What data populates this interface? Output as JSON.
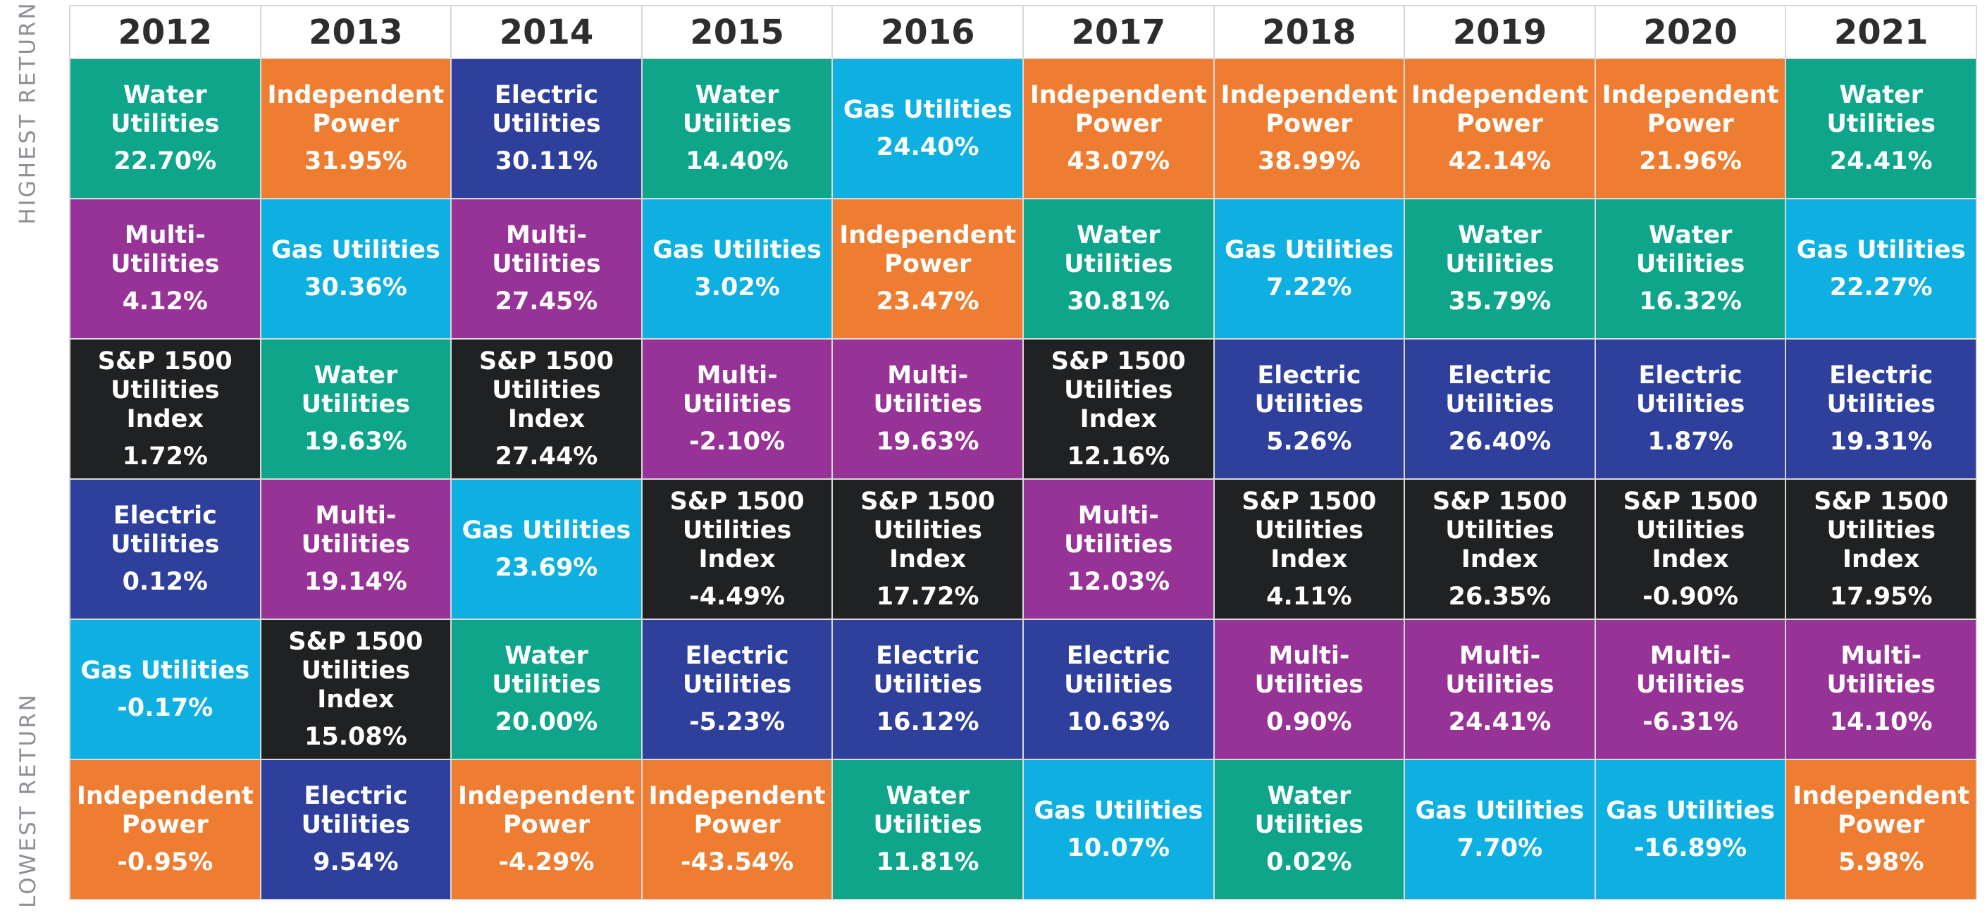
{
  "side_labels": {
    "top": "HIGHEST RETURN",
    "bottom": "LOWEST RETURN"
  },
  "colors": {
    "Water Utilities": "#0ea58a",
    "Independent Power": "#ef7d31",
    "Electric Utilities": "#2e3f9c",
    "Gas Utilities": "#0db0e0",
    "Multi-Utilities": "#973396",
    "S&P 1500 Utilities Index": "#1f2123"
  },
  "display_names": {
    "Water Utilities": "Water\nUtilities",
    "Independent Power": "Independent\nPower",
    "Electric Utilities": "Electric\nUtilities",
    "Gas Utilities": "Gas Utilities",
    "Multi-Utilities": "Multi-Utilities",
    "S&P 1500 Utilities Index": "S&P 1500\nUtilities Index"
  },
  "chart_data": {
    "type": "table",
    "title": "",
    "row_order": "highest to lowest return",
    "years": [
      "2012",
      "2013",
      "2014",
      "2015",
      "2016",
      "2017",
      "2018",
      "2019",
      "2020",
      "2021"
    ],
    "columns": [
      [
        {
          "name": "Water Utilities",
          "value": "22.70%"
        },
        {
          "name": "Multi-Utilities",
          "value": "4.12%"
        },
        {
          "name": "S&P 1500 Utilities Index",
          "value": "1.72%"
        },
        {
          "name": "Electric Utilities",
          "value": "0.12%"
        },
        {
          "name": "Gas Utilities",
          "value": "-0.17%"
        },
        {
          "name": "Independent Power",
          "value": "-0.95%"
        }
      ],
      [
        {
          "name": "Independent Power",
          "value": "31.95%"
        },
        {
          "name": "Gas Utilities",
          "value": "30.36%"
        },
        {
          "name": "Water Utilities",
          "value": "19.63%"
        },
        {
          "name": "Multi-Utilities",
          "value": "19.14%"
        },
        {
          "name": "S&P 1500 Utilities Index",
          "value": "15.08%"
        },
        {
          "name": "Electric Utilities",
          "value": "9.54%"
        }
      ],
      [
        {
          "name": "Electric Utilities",
          "value": "30.11%"
        },
        {
          "name": "Multi-Utilities",
          "value": "27.45%"
        },
        {
          "name": "S&P 1500 Utilities Index",
          "value": "27.44%"
        },
        {
          "name": "Gas Utilities",
          "value": "23.69%"
        },
        {
          "name": "Water Utilities",
          "value": "20.00%"
        },
        {
          "name": "Independent Power",
          "value": "-4.29%"
        }
      ],
      [
        {
          "name": "Water Utilities",
          "value": "14.40%"
        },
        {
          "name": "Gas Utilities",
          "value": "3.02%"
        },
        {
          "name": "Multi-Utilities",
          "value": "-2.10%"
        },
        {
          "name": "S&P 1500 Utilities Index",
          "value": "-4.49%"
        },
        {
          "name": "Electric Utilities",
          "value": "-5.23%"
        },
        {
          "name": "Independent Power",
          "value": "-43.54%"
        }
      ],
      [
        {
          "name": "Gas Utilities",
          "value": "24.40%"
        },
        {
          "name": "Independent Power",
          "value": "23.47%"
        },
        {
          "name": "Multi-Utilities",
          "value": "19.63%"
        },
        {
          "name": "S&P 1500 Utilities Index",
          "value": "17.72%"
        },
        {
          "name": "Electric Utilities",
          "value": "16.12%"
        },
        {
          "name": "Water Utilities",
          "value": "11.81%"
        }
      ],
      [
        {
          "name": "Independent Power",
          "value": "43.07%"
        },
        {
          "name": "Water Utilities",
          "value": "30.81%"
        },
        {
          "name": "S&P 1500 Utilities Index",
          "value": "12.16%"
        },
        {
          "name": "Multi-Utilities",
          "value": "12.03%"
        },
        {
          "name": "Electric Utilities",
          "value": "10.63%"
        },
        {
          "name": "Gas Utilities",
          "value": "10.07%"
        }
      ],
      [
        {
          "name": "Independent Power",
          "value": "38.99%"
        },
        {
          "name": "Gas Utilities",
          "value": "7.22%"
        },
        {
          "name": "Electric Utilities",
          "value": "5.26%"
        },
        {
          "name": "S&P 1500 Utilities Index",
          "value": "4.11%"
        },
        {
          "name": "Multi-Utilities",
          "value": "0.90%"
        },
        {
          "name": "Water Utilities",
          "value": "0.02%"
        }
      ],
      [
        {
          "name": "Independent Power",
          "value": "42.14%"
        },
        {
          "name": "Water Utilities",
          "value": "35.79%"
        },
        {
          "name": "Electric Utilities",
          "value": "26.40%"
        },
        {
          "name": "S&P 1500 Utilities Index",
          "value": "26.35%"
        },
        {
          "name": "Multi-Utilities",
          "value": "24.41%"
        },
        {
          "name": "Gas Utilities",
          "value": "7.70%"
        }
      ],
      [
        {
          "name": "Independent Power",
          "value": "21.96%"
        },
        {
          "name": "Water Utilities",
          "value": "16.32%"
        },
        {
          "name": "Electric Utilities",
          "value": "1.87%"
        },
        {
          "name": "S&P 1500 Utilities Index",
          "value": "-0.90%"
        },
        {
          "name": "Multi-Utilities",
          "value": "-6.31%"
        },
        {
          "name": "Gas Utilities",
          "value": "-16.89%"
        }
      ],
      [
        {
          "name": "Water Utilities",
          "value": "24.41%"
        },
        {
          "name": "Gas Utilities",
          "value": "22.27%"
        },
        {
          "name": "Electric Utilities",
          "value": "19.31%"
        },
        {
          "name": "S&P 1500 Utilities Index",
          "value": "17.95%"
        },
        {
          "name": "Multi-Utilities",
          "value": "14.10%"
        },
        {
          "name": "Independent Power",
          "value": "5.98%"
        }
      ]
    ]
  }
}
